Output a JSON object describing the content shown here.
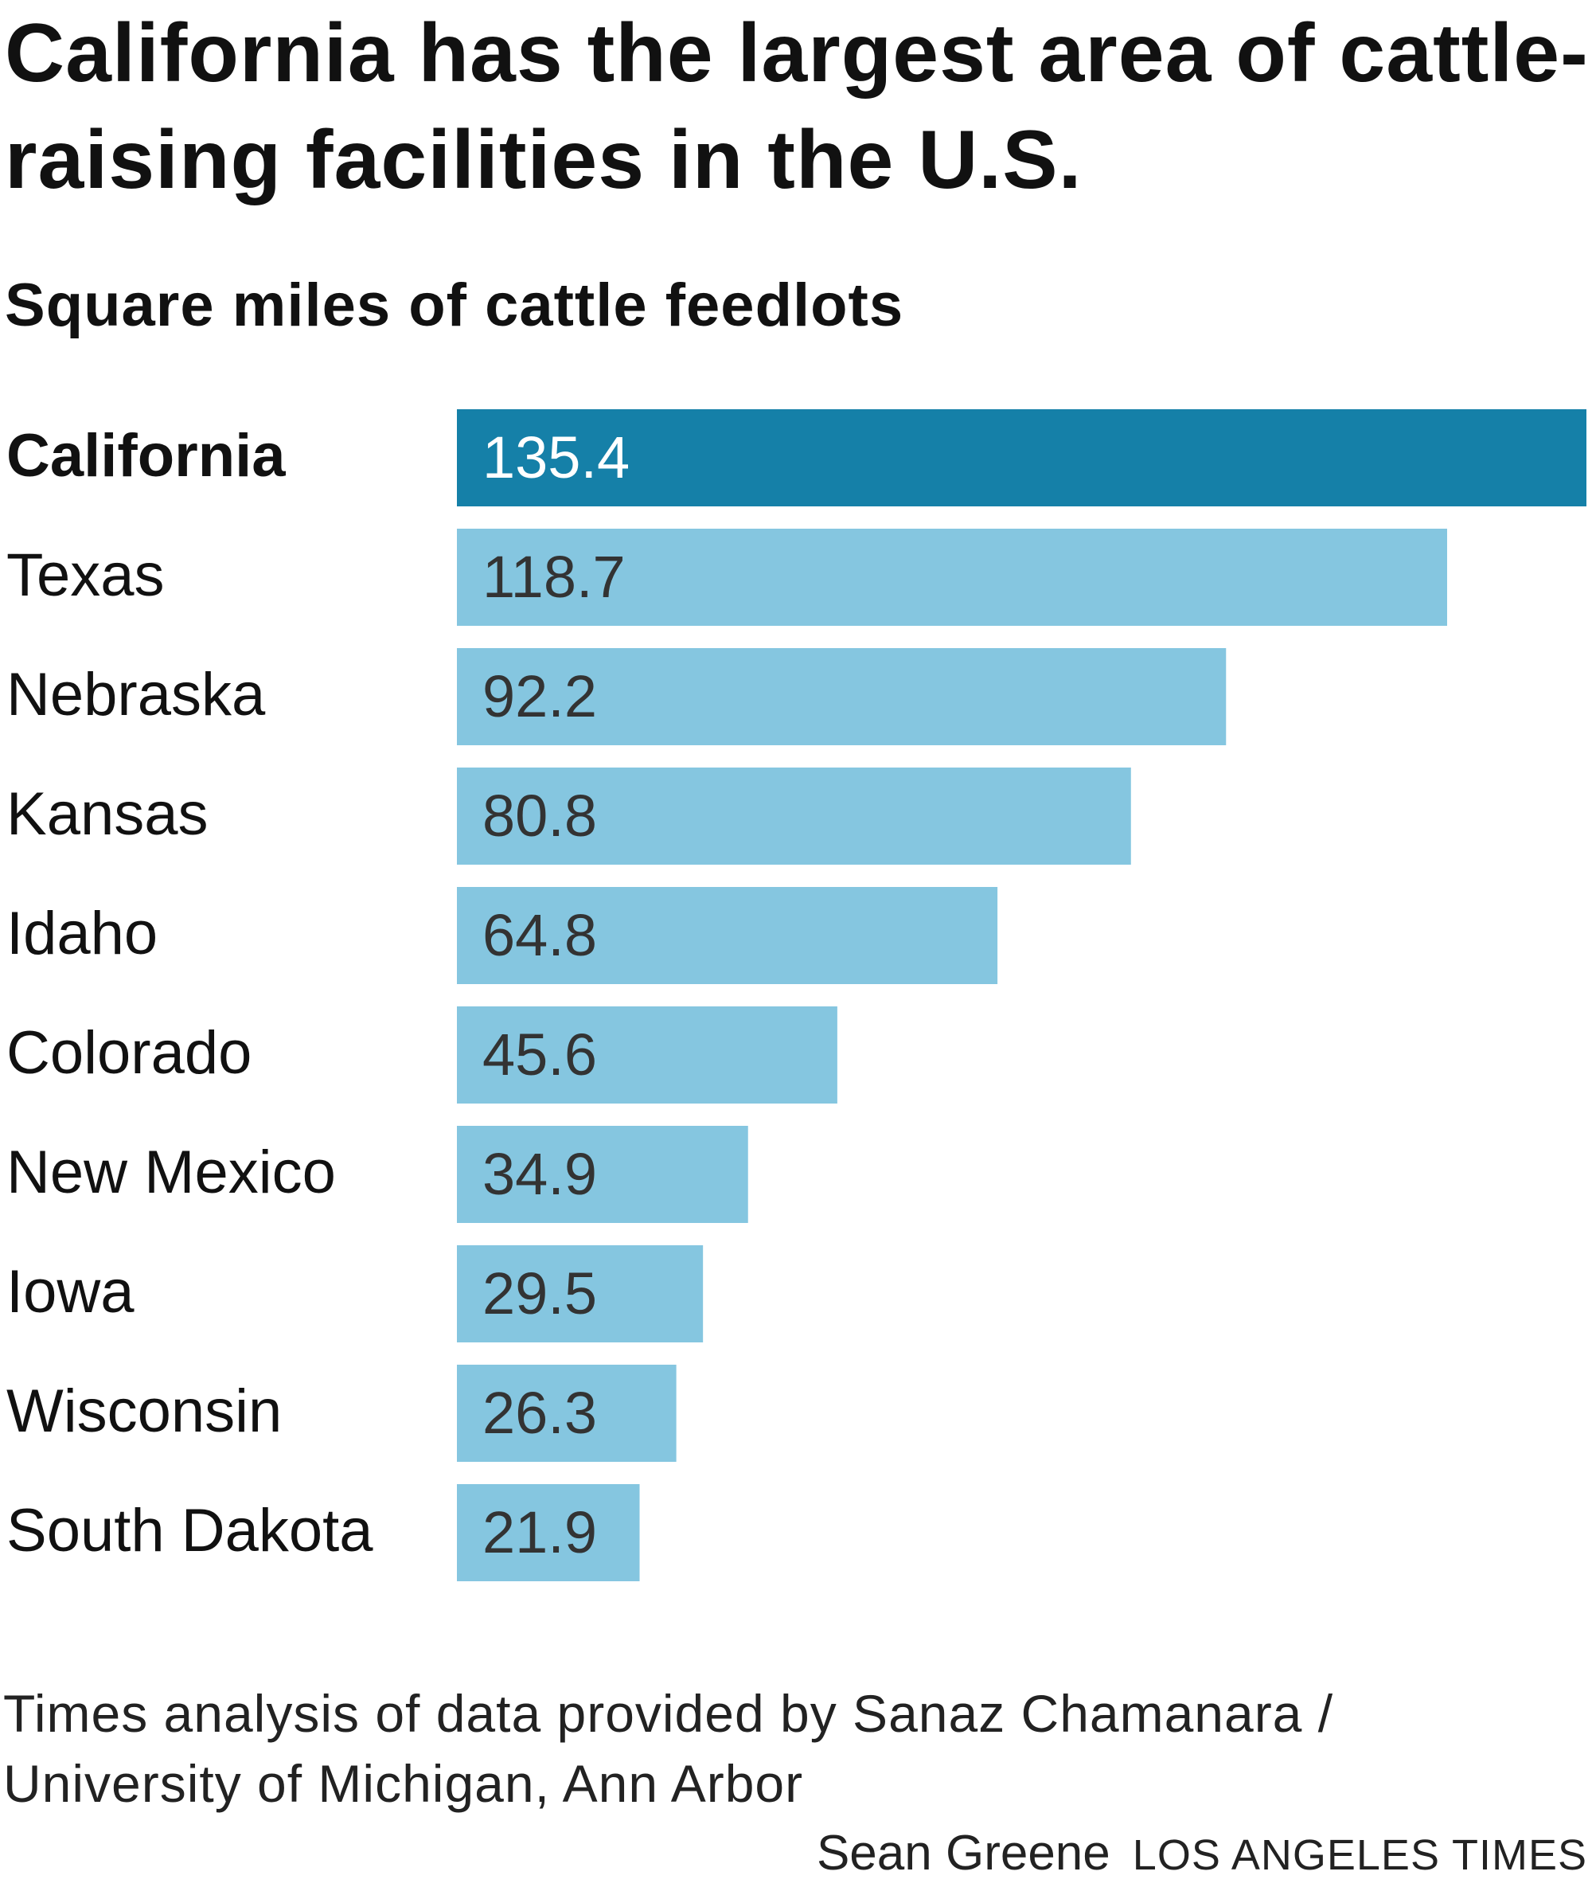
{
  "title": "California has the largest area of cattle-raising facilities in the U.S.",
  "subtitle": "Square miles of cattle feedlots",
  "source": "Times analysis of data provided by Sanaz Chamanara / University of Michigan, Ann Arbor",
  "credit": {
    "author": "Sean Greene",
    "publication": "LOS ANGELES TIMES"
  },
  "colors": {
    "highlight": "#1580a8",
    "bar": "#85c6e0",
    "highlight_text": "#ffffff",
    "bar_text": "#333333"
  },
  "chart_data": {
    "type": "bar",
    "orientation": "horizontal",
    "title": "California has the largest area of cattle-raising facilities in the U.S.",
    "subtitle": "Square miles of cattle feedlots",
    "categories": [
      "California",
      "Texas",
      "Nebraska",
      "Kansas",
      "Idaho",
      "Colorado",
      "New Mexico",
      "Iowa",
      "Wisconsin",
      "South Dakota"
    ],
    "values": [
      135.4,
      118.7,
      92.2,
      80.8,
      64.8,
      45.6,
      34.9,
      29.5,
      26.3,
      21.9
    ],
    "value_labels": [
      "135.4",
      "118.7",
      "92.2",
      "80.8",
      "64.8",
      "45.6",
      "34.9",
      "29.5",
      "26.3",
      "21.9"
    ],
    "highlight": "California",
    "xlim": [
      0,
      135.4
    ],
    "grid": false,
    "legend": "none"
  }
}
